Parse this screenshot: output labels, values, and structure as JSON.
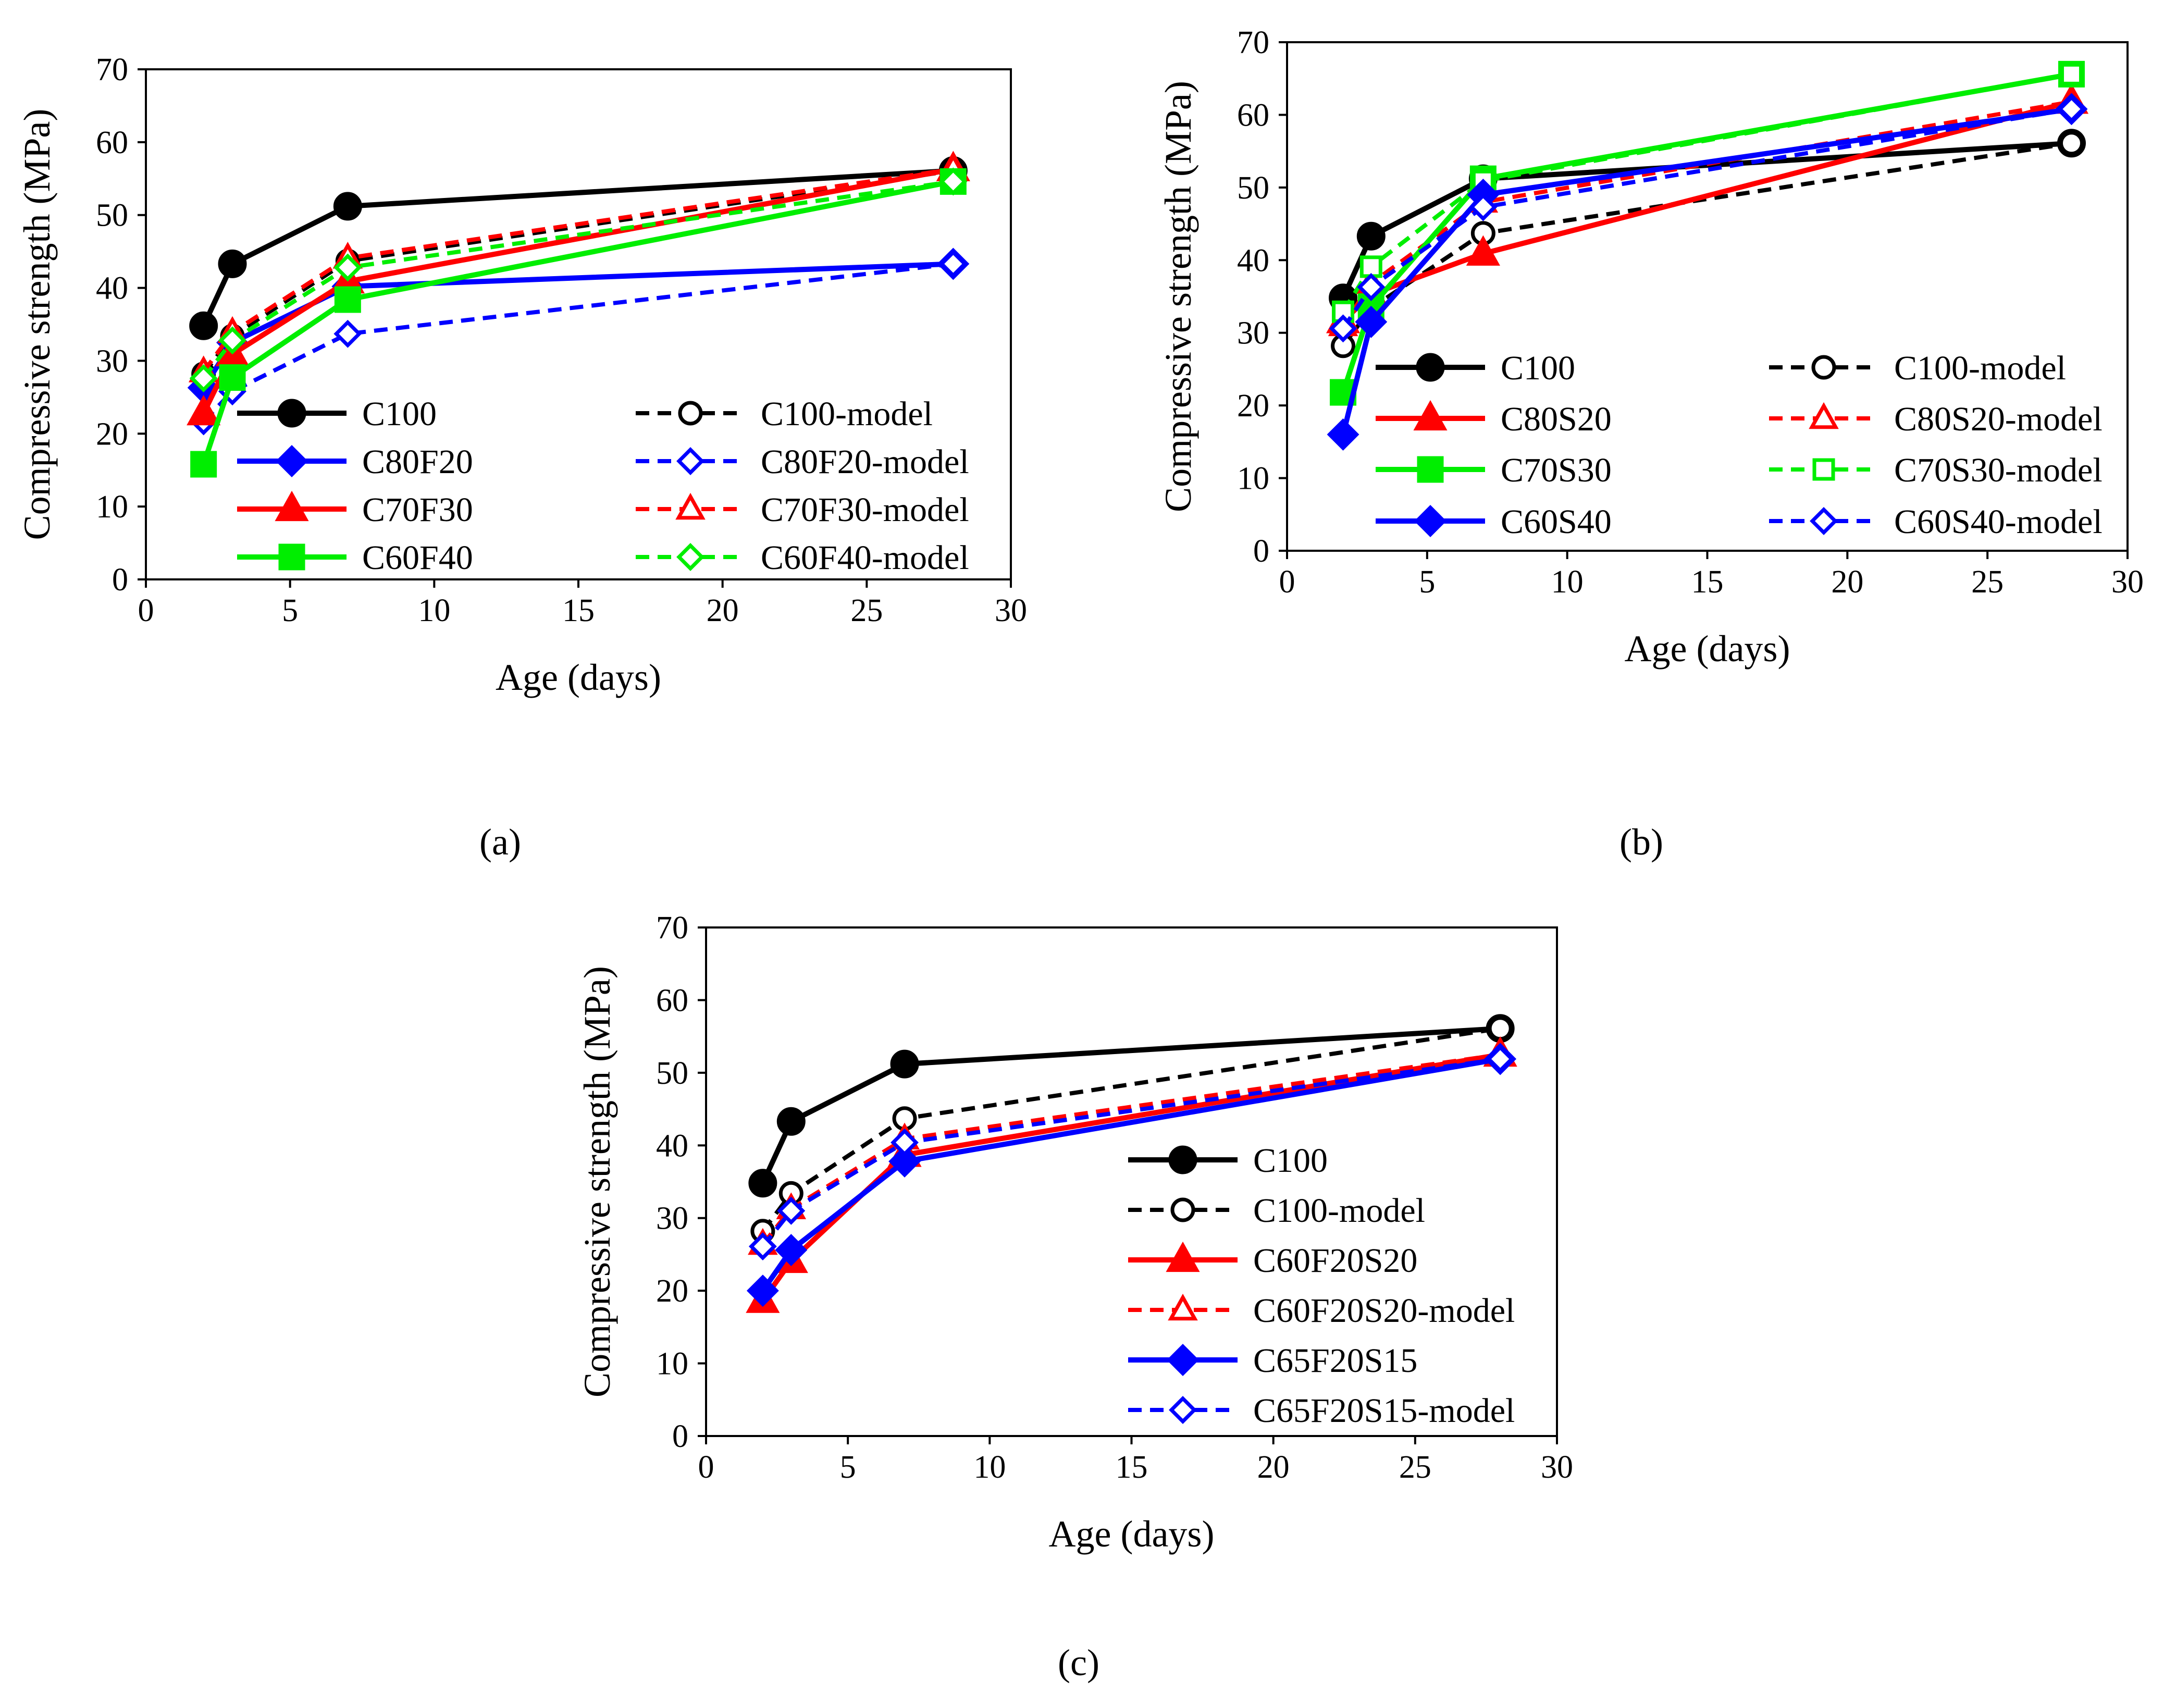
{
  "chart_data": [
    {
      "type": "line",
      "panel_label": "(a)",
      "xlabel": "Age (days)",
      "ylabel": "Compressive strength (MPa)",
      "xlim": [
        0,
        30
      ],
      "ylim": [
        0,
        70
      ],
      "xticks": [
        0,
        5,
        10,
        15,
        20,
        25,
        30
      ],
      "yticks": [
        0,
        10,
        20,
        30,
        40,
        50,
        60,
        70
      ],
      "grid": false,
      "legend": "lower-right, two columns",
      "series": [
        {
          "name": "C100",
          "color": "#000000",
          "dash": false,
          "marker": "circle",
          "filled": true,
          "x": [
            2,
            3,
            7,
            28
          ],
          "y": [
            34.8,
            43.3,
            51.2,
            56.1
          ]
        },
        {
          "name": "C100-model",
          "color": "#000000",
          "dash": true,
          "marker": "circle",
          "filled": false,
          "x": [
            2,
            3,
            7,
            28
          ],
          "y": [
            28.2,
            33.4,
            43.7,
            56.1
          ]
        },
        {
          "name": "C80F20",
          "color": "#0000FF",
          "dash": false,
          "marker": "diamond",
          "filled": true,
          "x": [
            2,
            3,
            7,
            28
          ],
          "y": [
            26.3,
            32.5,
            40.2,
            43.3
          ]
        },
        {
          "name": "C80F20-model",
          "color": "#0000FF",
          "dash": true,
          "marker": "diamond",
          "filled": false,
          "x": [
            2,
            3,
            7,
            28
          ],
          "y": [
            21.7,
            25.8,
            33.7,
            43.3
          ]
        },
        {
          "name": "C70F30",
          "color": "#FF0000",
          "dash": false,
          "marker": "triangle",
          "filled": true,
          "x": [
            2,
            3,
            7,
            28
          ],
          "y": [
            22.8,
            30.9,
            40.9,
            56.3
          ]
        },
        {
          "name": "C70F30-model",
          "color": "#FF0000",
          "dash": true,
          "marker": "triangle",
          "filled": false,
          "x": [
            2,
            3,
            7,
            28
          ],
          "y": [
            28.5,
            33.9,
            44.1,
            56.3
          ]
        },
        {
          "name": "C60F40",
          "color": "#00EE00",
          "dash": false,
          "marker": "square",
          "filled": true,
          "x": [
            2,
            3,
            7,
            28
          ],
          "y": [
            15.8,
            27.7,
            38.4,
            54.6
          ]
        },
        {
          "name": "C60F40-model",
          "color": "#00EE00",
          "dash": true,
          "marker": "diamond",
          "filled": false,
          "x": [
            2,
            3,
            7,
            28
          ],
          "y": [
            27.6,
            32.8,
            42.8,
            54.6
          ]
        }
      ]
    },
    {
      "type": "line",
      "panel_label": "(b)",
      "xlabel": "Age (days)",
      "ylabel": "Compressive strength (MPa)",
      "xlim": [
        0,
        30
      ],
      "ylim": [
        0,
        70
      ],
      "xticks": [
        0,
        5,
        10,
        15,
        20,
        25,
        30
      ],
      "yticks": [
        0,
        10,
        20,
        30,
        40,
        50,
        60,
        70
      ],
      "grid": false,
      "legend": "lower-right, two columns",
      "series": [
        {
          "name": "C100",
          "color": "#000000",
          "dash": false,
          "marker": "circle",
          "filled": true,
          "x": [
            2,
            3,
            7,
            28
          ],
          "y": [
            34.8,
            43.3,
            51.2,
            56.1
          ]
        },
        {
          "name": "C100-model",
          "color": "#000000",
          "dash": true,
          "marker": "circle",
          "filled": false,
          "x": [
            2,
            3,
            7,
            28
          ],
          "y": [
            28.2,
            33.4,
            43.7,
            56.1
          ]
        },
        {
          "name": "C80S20",
          "color": "#FF0000",
          "dash": false,
          "marker": "triangle",
          "filled": true,
          "x": [
            2,
            3,
            7,
            28
          ],
          "y": [
            31.6,
            35.3,
            40.9,
            61.8
          ]
        },
        {
          "name": "C80S20-model",
          "color": "#FF0000",
          "dash": true,
          "marker": "triangle",
          "filled": false,
          "x": [
            2,
            3,
            7,
            28
          ],
          "y": [
            31.0,
            36.8,
            48.0,
            61.8
          ]
        },
        {
          "name": "C70S30",
          "color": "#00EE00",
          "dash": false,
          "marker": "square",
          "filled": true,
          "x": [
            2,
            3,
            7,
            28
          ],
          "y": [
            21.8,
            33.6,
            51.2,
            65.6
          ]
        },
        {
          "name": "C70S30-model",
          "color": "#00EE00",
          "dash": true,
          "marker": "square",
          "filled": false,
          "x": [
            2,
            3,
            7,
            28
          ],
          "y": [
            32.9,
            39.1,
            50.9,
            65.6
          ]
        },
        {
          "name": "C60S40",
          "color": "#0000FF",
          "dash": false,
          "marker": "diamond",
          "filled": true,
          "x": [
            2,
            3,
            7,
            28
          ],
          "y": [
            16.0,
            31.5,
            49.0,
            60.8
          ]
        },
        {
          "name": "C60S40-model",
          "color": "#0000FF",
          "dash": true,
          "marker": "diamond",
          "filled": false,
          "x": [
            2,
            3,
            7,
            28
          ],
          "y": [
            30.6,
            36.3,
            47.3,
            60.8
          ]
        }
      ]
    },
    {
      "type": "line",
      "panel_label": "(c)",
      "xlabel": "Age (days)",
      "ylabel": "Compressive strength (MPa)",
      "xlim": [
        0,
        30
      ],
      "ylim": [
        0,
        70
      ],
      "xticks": [
        0,
        5,
        10,
        15,
        20,
        25,
        30
      ],
      "yticks": [
        0,
        10,
        20,
        30,
        40,
        50,
        60,
        70
      ],
      "grid": false,
      "legend": "lower-right, one column",
      "series": [
        {
          "name": "C100",
          "color": "#000000",
          "dash": false,
          "marker": "circle",
          "filled": true,
          "x": [
            2,
            3,
            7,
            28
          ],
          "y": [
            34.8,
            43.3,
            51.2,
            56.1
          ]
        },
        {
          "name": "C100-model",
          "color": "#000000",
          "dash": true,
          "marker": "circle",
          "filled": false,
          "x": [
            2,
            3,
            7,
            28
          ],
          "y": [
            28.2,
            33.4,
            43.7,
            56.1
          ]
        },
        {
          "name": "C60F20S20",
          "color": "#FF0000",
          "dash": false,
          "marker": "triangle",
          "filled": true,
          "x": [
            2,
            3,
            7,
            28
          ],
          "y": [
            18.6,
            24.1,
            38.7,
            52.5
          ]
        },
        {
          "name": "C60F20S20-model",
          "color": "#FF0000",
          "dash": true,
          "marker": "triangle",
          "filled": false,
          "x": [
            2,
            3,
            7,
            28
          ],
          "y": [
            26.4,
            31.3,
            40.9,
            52.5
          ]
        },
        {
          "name": "C65F20S15",
          "color": "#0000FF",
          "dash": false,
          "marker": "diamond",
          "filled": true,
          "x": [
            2,
            3,
            7,
            28
          ],
          "y": [
            20.0,
            25.6,
            37.8,
            51.9
          ]
        },
        {
          "name": "C65F20S15-model",
          "color": "#0000FF",
          "dash": true,
          "marker": "diamond",
          "filled": false,
          "x": [
            2,
            3,
            7,
            28
          ],
          "y": [
            26.1,
            31.0,
            40.4,
            51.9
          ]
        }
      ]
    }
  ]
}
